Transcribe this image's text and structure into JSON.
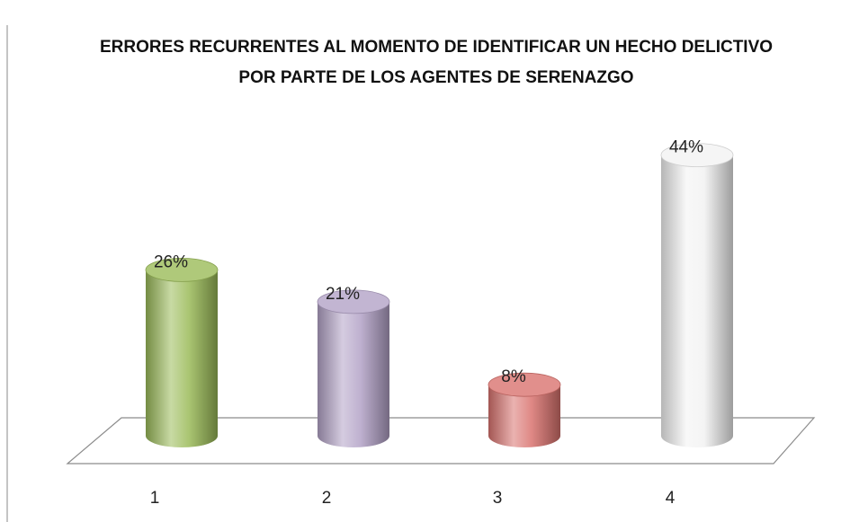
{
  "chart_data": {
    "type": "bar3d",
    "title": "ERRORES RECURRENTES AL MOMENTO DE IDENTIFICAR UN HECHO DELICTIVO POR PARTE DE LOS AGENTES DE SERENAZGO",
    "categories": [
      "1",
      "2",
      "3",
      "4"
    ],
    "values": [
      26,
      21,
      8,
      44
    ],
    "value_labels": [
      "26%",
      "21%",
      "8%",
      "44%"
    ],
    "colors": [
      "#9bbb59",
      "#b3a2c7",
      "#d9736f",
      "#f2f2f2"
    ]
  }
}
